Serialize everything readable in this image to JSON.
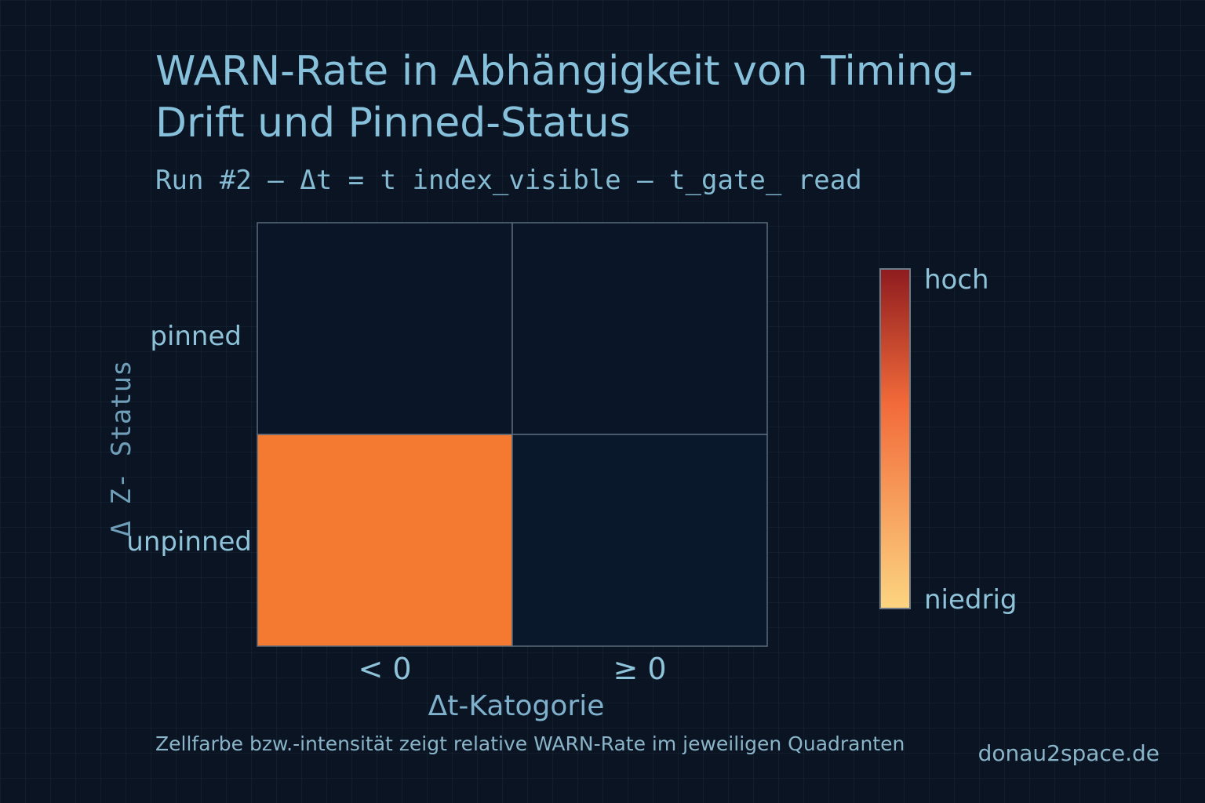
{
  "header": {
    "title": "WARN-Rate in Abhängigkeit von Timing-Drift und Pinned-Status",
    "subtitle": "Run #2 – Δt = t index_visible – t_gate_ read"
  },
  "footer": {
    "note": "Zellfarbe bzw.-intensität zeigt relative WARN-Rate im jeweiligen Quadranten",
    "site": "donau2space.de"
  },
  "colors": {
    "background": "#0a1423",
    "text": "#86c0da",
    "grid_line": "#5a6b7c",
    "cell_low": "#0a1627",
    "cell_mid": "#0b1b33",
    "cell_high": "#f47a32",
    "scale_top": "#8e1c1f",
    "scale_mid": "#f26b3a",
    "scale_bottom": "#fcd581"
  },
  "chart_data": {
    "type": "heatmap",
    "title": "WARN-Rate in Abhängigkeit von Timing-Drift und Pinned-Status",
    "subtitle": "Run #2 – Δt = t index_visible – t_gate_ read",
    "xlabel": "Δt-Katogorie",
    "ylabel": "Δ Z- Status",
    "x_categories": [
      "< 0",
      "≥ 0"
    ],
    "y_categories": [
      "pinned",
      "unpinned"
    ],
    "values": [
      [
        0.0,
        0.0
      ],
      [
        0.62,
        0.02
      ]
    ],
    "value_meaning": "relative WARN-Rate",
    "colorbar": {
      "high_label": "hoch",
      "low_label": "niedrig",
      "placement": "right"
    },
    "grid": true,
    "legend": "right"
  }
}
